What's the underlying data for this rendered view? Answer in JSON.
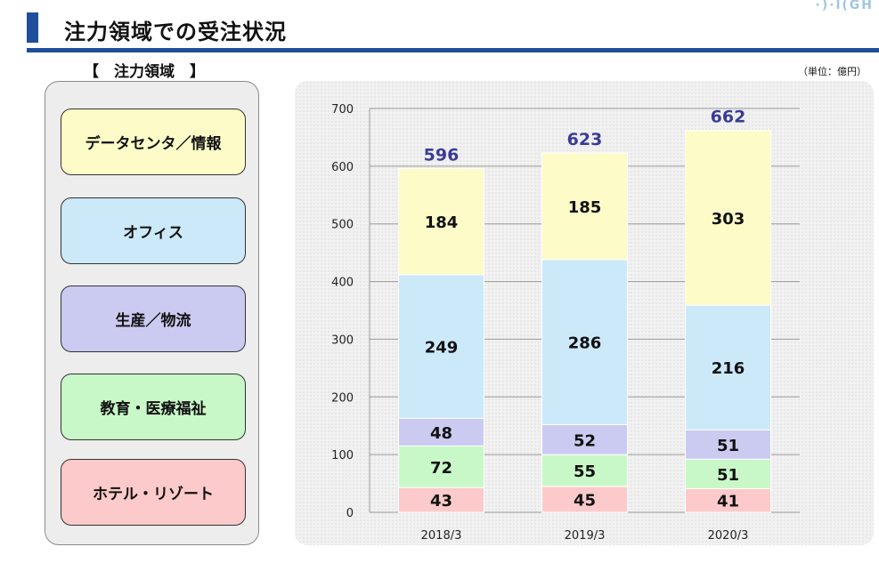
{
  "header": {
    "title": "注力領域での受注状況",
    "corner_logo": "·)·l(GH"
  },
  "section_heading": "【　注力領域　】",
  "unit_note": "（単位：億円）",
  "focus_areas": [
    {
      "label": "データセンタ／情報",
      "color": "#fdfcc8"
    },
    {
      "label": "オフィス",
      "color": "#cce9fa"
    },
    {
      "label": "生産／物流",
      "color": "#cbcbf2"
    },
    {
      "label": "教育・医療福祉",
      "color": "#c8f8c8"
    },
    {
      "label": "ホテル・リゾート",
      "color": "#fccaca"
    }
  ],
  "chart_data": {
    "type": "bar",
    "stacked": true,
    "categories": [
      "2018/3",
      "2019/3",
      "2020/3"
    ],
    "series": [
      {
        "values": [
          43,
          45,
          41
        ],
        "color": "#fccaca"
      },
      {
        "values": [
          72,
          55,
          51
        ],
        "color": "#c8f8c8"
      },
      {
        "values": [
          48,
          52,
          51
        ],
        "color": "#cbcbf2"
      },
      {
        "values": [
          249,
          286,
          216
        ],
        "color": "#cce9fa"
      },
      {
        "values": [
          184,
          185,
          303
        ],
        "color": "#fdfcc8"
      }
    ],
    "totals": [
      596,
      623,
      662
    ],
    "ylim": [
      0,
      700
    ],
    "yticks": [
      0,
      100,
      200,
      300,
      400,
      500,
      600,
      700
    ],
    "grid": true,
    "total_label_color": "#3b3b96"
  }
}
